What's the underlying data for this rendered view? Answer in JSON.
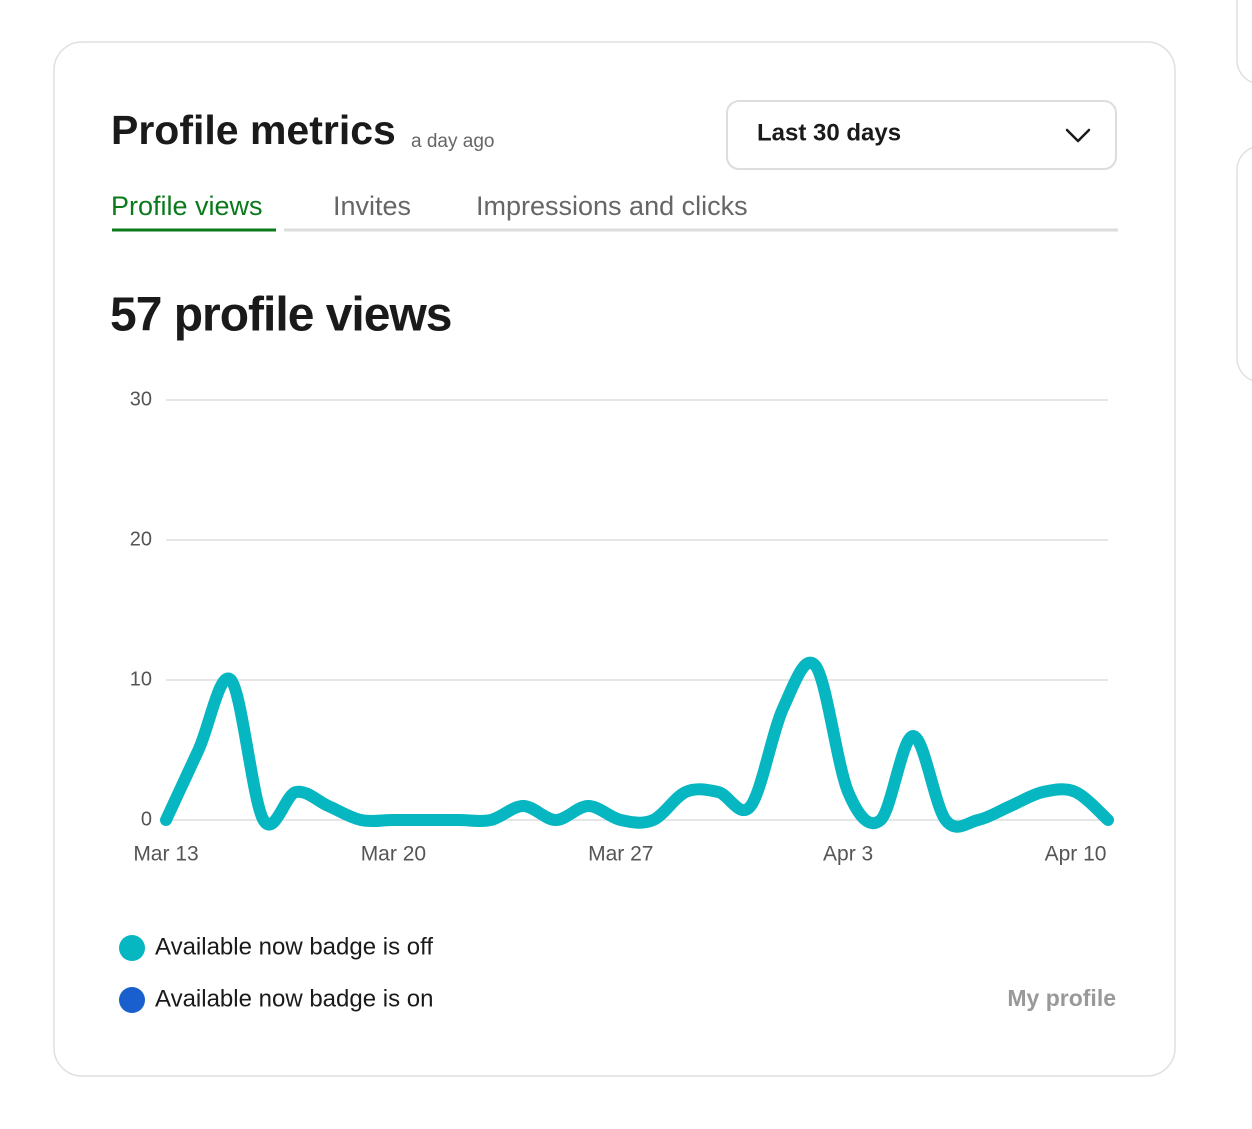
{
  "header": {
    "title": "Profile metrics",
    "updated": "a day ago"
  },
  "range_select": {
    "label": "Last 30 days"
  },
  "tabs": [
    "Profile views",
    "Invites",
    "Impressions and clicks"
  ],
  "headline": "57 profile views",
  "chart_data": {
    "type": "line",
    "categories": [
      "Mar 13",
      null,
      null,
      null,
      null,
      null,
      null,
      "Mar 20",
      null,
      null,
      null,
      null,
      null,
      null,
      "Mar 27",
      null,
      null,
      null,
      null,
      null,
      null,
      "Apr 3",
      null,
      null,
      null,
      null,
      null,
      null,
      "Apr 10",
      null
    ],
    "series": [
      {
        "name": "Available now badge is off",
        "color": "#06b6c1",
        "values": [
          0,
          5,
          10,
          0,
          2,
          1,
          0,
          0,
          0,
          0,
          0,
          1,
          0,
          1,
          0,
          0,
          2,
          2,
          1,
          8,
          11,
          2,
          0,
          6,
          0,
          0,
          1,
          2,
          2,
          0
        ]
      },
      {
        "name": "Available now badge is on",
        "color": "#1a5fce"
      }
    ],
    "ylim": [
      0,
      30
    ],
    "yticks": [
      0,
      10,
      20,
      30
    ],
    "grid": true
  },
  "link": "My profile"
}
